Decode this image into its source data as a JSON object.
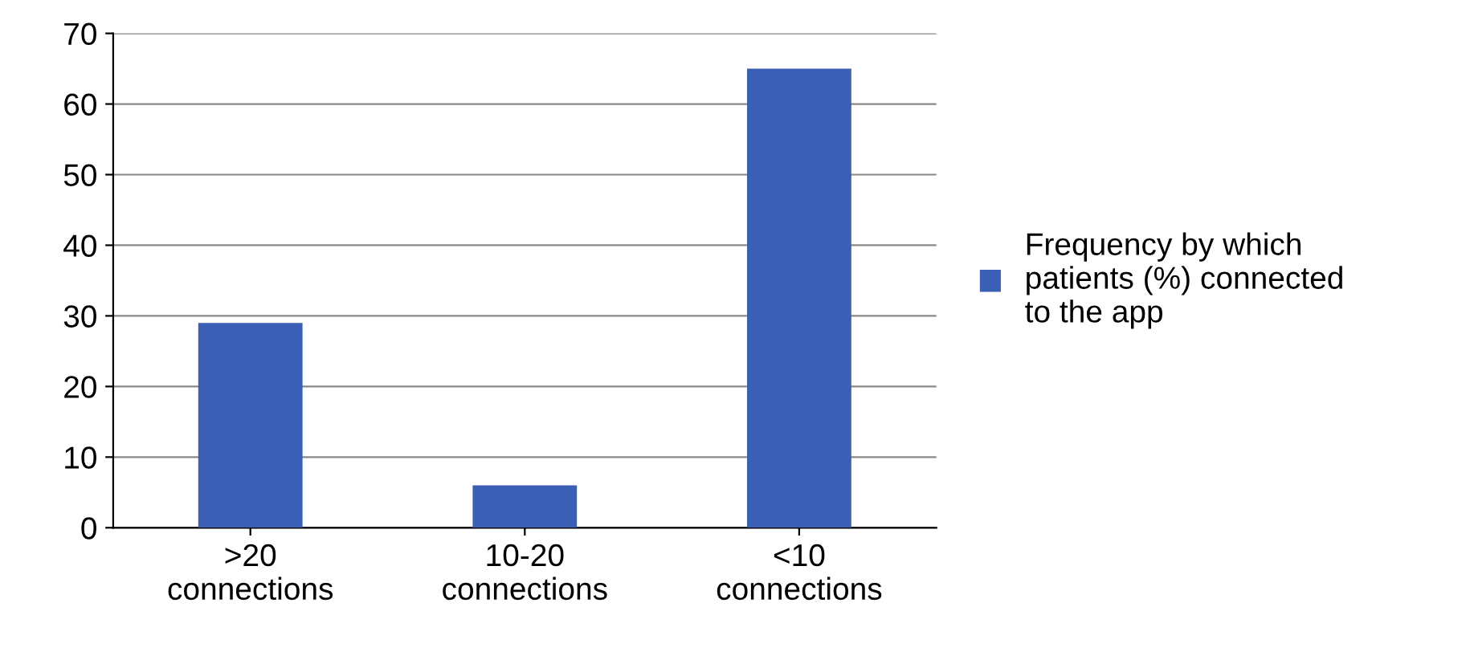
{
  "chart_data": {
    "type": "bar",
    "categories": [
      ">20\nconnections",
      "10-20\nconnections",
      "<10\nconnections"
    ],
    "series": [
      {
        "name": "Frequency by which\npatients (%) connected\nto the app",
        "color": "#3a5fb4",
        "values": [
          29,
          6,
          65
        ]
      }
    ],
    "ylim": [
      0,
      70
    ],
    "yticks": [
      0,
      10,
      20,
      30,
      40,
      50,
      60,
      70
    ],
    "grid": "y",
    "legend": "right"
  }
}
